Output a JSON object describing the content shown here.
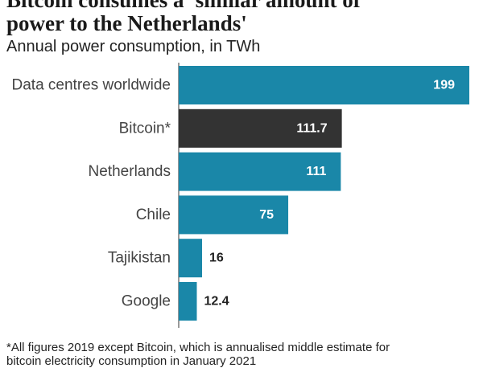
{
  "header": {
    "title_line1": "Bitcoin consumes a 'similar amount of",
    "title_line2": "power to the Netherlands'"
  },
  "chart_data": {
    "type": "bar",
    "orientation": "horizontal",
    "title": "Bitcoin consumes a 'similar amount of power to the Netherlands'",
    "subtitle": "Annual power consumption, in TWh",
    "categories": [
      "Data centres worldwide",
      "Bitcoin*",
      "Netherlands",
      "Chile",
      "Tajikistan",
      "Google"
    ],
    "values": [
      199,
      111.7,
      111,
      75,
      16,
      12.4
    ],
    "value_labels": [
      "199",
      "111.7",
      "111",
      "75",
      "16",
      "12.4"
    ],
    "bar_colors": [
      "#1a87a8",
      "#333333",
      "#1a87a8",
      "#1a87a8",
      "#1a87a8",
      "#1a87a8"
    ],
    "xlabel": "",
    "ylabel": "",
    "xlim": [
      0,
      199
    ],
    "grid": false,
    "legend": "none"
  },
  "footnote": {
    "line1": "*All figures 2019 except Bitcoin, which is annualised middle estimate for",
    "line2": "bitcoin electricity consumption in January 2021"
  }
}
